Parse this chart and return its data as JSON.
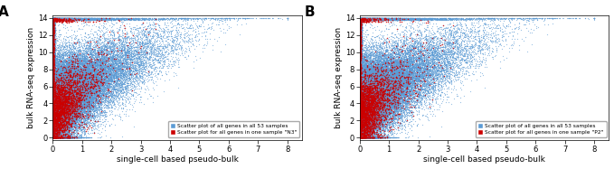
{
  "panel_A": {
    "label": "A",
    "sample_name": "N3",
    "legend_blue": "Scatter plot of all genes in all 53 samples",
    "legend_red": "Scatter plot for all genes in one sample \"N3\""
  },
  "panel_B": {
    "label": "B",
    "sample_name": "P2",
    "legend_blue": "Scatter plot of all genes in all 53 samples",
    "legend_red": "Scatter plot for all genes in one sample \"P2\""
  },
  "xlabel": "single-cell based pseudo-bulk",
  "ylabel": "bulk RNA-seq expression",
  "xlim": [
    0,
    8.5
  ],
  "ylim": [
    -0.3,
    14.3
  ],
  "xticks": [
    0,
    1,
    2,
    3,
    4,
    5,
    6,
    7,
    8
  ],
  "yticks": [
    0,
    2,
    4,
    6,
    8,
    10,
    12,
    14
  ],
  "blue_color": "#5b9bd5",
  "red_color": "#cc0000",
  "dot_size_blue": 0.8,
  "dot_size_red": 1.2,
  "alpha_blue": 0.6,
  "alpha_red": 0.8,
  "n_blue": 50000,
  "n_red": 4000,
  "figsize": [
    6.79,
    1.87
  ],
  "dpi": 100
}
